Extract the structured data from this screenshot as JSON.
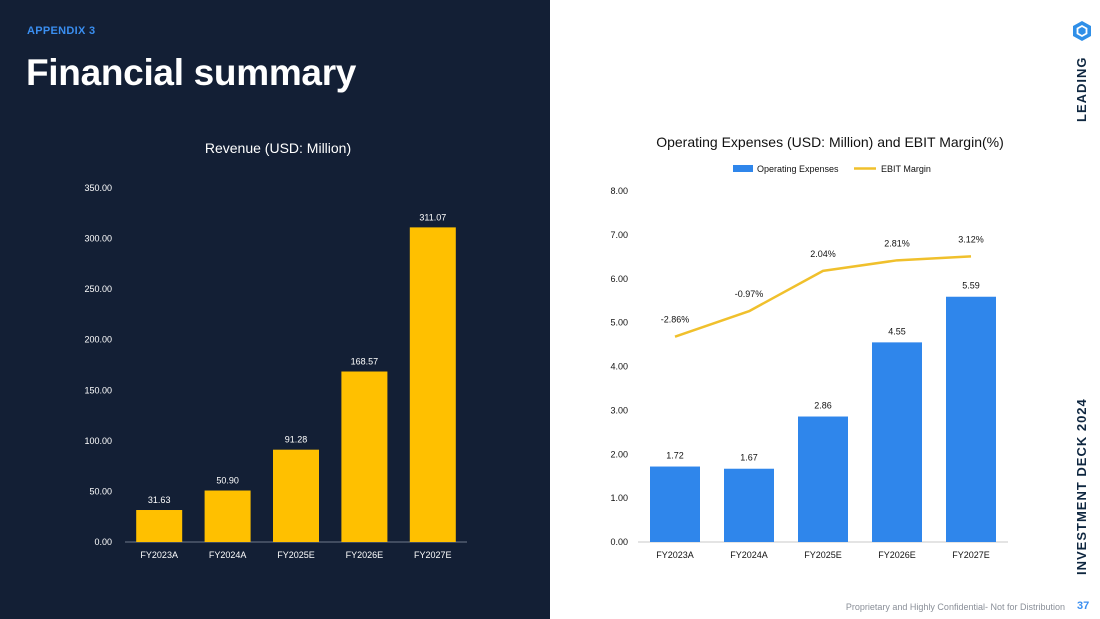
{
  "header": {
    "kicker": "APPENDIX 3",
    "title": "Financial summary"
  },
  "side": {
    "top_label": "LEADING",
    "bottom_label": "INVESTMENT DECK 2024",
    "logo_icon": "hexagon-logo-icon"
  },
  "footer": {
    "note": "Proprietary and Highly Confidential- Not for Distribution",
    "page_number": "37"
  },
  "colors": {
    "left_bg": "#131f35",
    "revenue_bar": "#ffc000",
    "opex_bar": "#2f86eb",
    "ebit_line": "#f0c02c",
    "accent": "#3a8ef0"
  },
  "chart_data": [
    {
      "type": "bar",
      "title": "Revenue (USD: Million)",
      "xlabel": "",
      "ylabel": "",
      "categories": [
        "FY2023A",
        "FY2024A",
        "FY2025E",
        "FY2026E",
        "FY2027E"
      ],
      "values": [
        31.63,
        50.9,
        91.28,
        168.57,
        311.07
      ],
      "value_labels": [
        "31.63",
        "50.90",
        "91.28",
        "168.57",
        "311.07"
      ],
      "ylim": [
        0,
        350
      ],
      "yticks": [
        "0.00",
        "50.00",
        "100.00",
        "150.00",
        "200.00",
        "250.00",
        "300.00",
        "350.00"
      ],
      "grid": false
    },
    {
      "type": "bar",
      "title": "Operating Expenses (USD: Million) and EBIT Margin(%)",
      "xlabel": "",
      "ylabel": "",
      "categories": [
        "FY2023A",
        "FY2024A",
        "FY2025E",
        "FY2026E",
        "FY2027E"
      ],
      "ylim": [
        0,
        8
      ],
      "yticks": [
        "0.00",
        "1.00",
        "2.00",
        "3.00",
        "4.00",
        "5.00",
        "6.00",
        "7.00",
        "8.00"
      ],
      "legend_position": "top-center",
      "grid": false,
      "series": [
        {
          "name": "Operating Expenses",
          "type": "bar",
          "values": [
            1.72,
            1.67,
            2.86,
            4.55,
            5.59
          ],
          "value_labels": [
            "1.72",
            "1.67",
            "2.86",
            "4.55",
            "5.59"
          ]
        },
        {
          "name": "EBIT Margin",
          "type": "line",
          "values": [
            -2.86,
            -0.97,
            2.04,
            2.81,
            3.12
          ],
          "value_labels": [
            "-2.86%",
            "-0.97%",
            "2.04%",
            "2.81%",
            "3.12%"
          ],
          "plotted_on_left_axis_values": [
            4.68,
            5.26,
            6.18,
            6.42,
            6.51
          ]
        }
      ]
    }
  ]
}
